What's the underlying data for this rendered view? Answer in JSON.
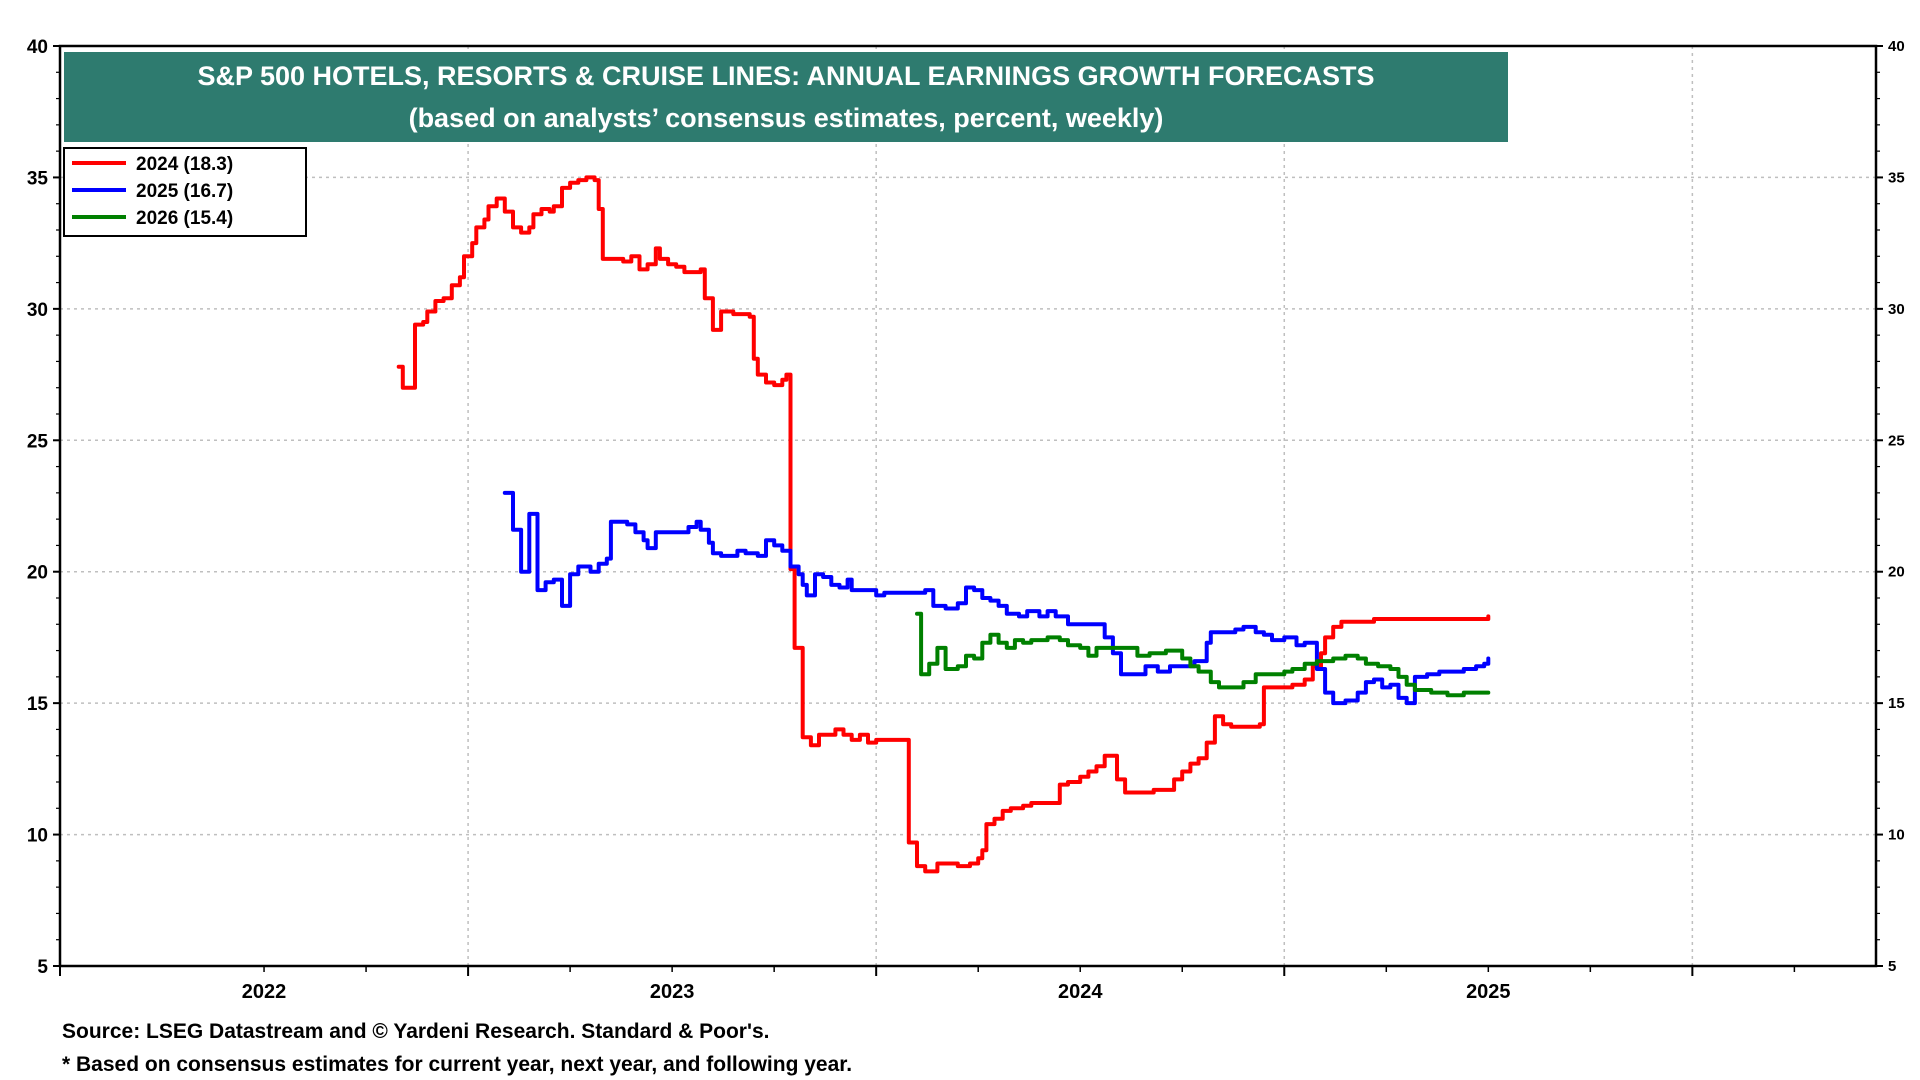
{
  "chart_data": {
    "type": "line",
    "title": "S&P 500 HOTELS, RESORTS & CRUISE LINES: ANNUAL EARNINGS GROWTH FORECASTS",
    "subtitle": "(based on analysts’ consensus estimates, percent, weekly)",
    "ylim": [
      5,
      40
    ],
    "yticks": [
      5,
      10,
      15,
      20,
      25,
      30,
      35,
      40
    ],
    "xlim": [
      2021.5,
      2025.95
    ],
    "x_year_labels": [
      "2022",
      "2023",
      "2024",
      "2025"
    ],
    "grid": true,
    "legend_position": "top-left",
    "colors": {
      "title_bg": "#2e7b6f",
      "grid": "#bfbfbf"
    },
    "series": [
      {
        "name": "2024 (18.3)",
        "color": "#ff0000",
        "points": [
          [
            2022.33,
            27.8
          ],
          [
            2022.34,
            27.0
          ],
          [
            2022.36,
            27.0
          ],
          [
            2022.37,
            29.4
          ],
          [
            2022.39,
            29.5
          ],
          [
            2022.4,
            29.9
          ],
          [
            2022.42,
            30.3
          ],
          [
            2022.44,
            30.4
          ],
          [
            2022.46,
            30.9
          ],
          [
            2022.48,
            31.2
          ],
          [
            2022.49,
            32.0
          ],
          [
            2022.51,
            32.5
          ],
          [
            2022.52,
            33.1
          ],
          [
            2022.54,
            33.4
          ],
          [
            2022.55,
            33.9
          ],
          [
            2022.57,
            34.2
          ],
          [
            2022.59,
            33.7
          ],
          [
            2022.61,
            33.1
          ],
          [
            2022.63,
            32.9
          ],
          [
            2022.65,
            33.1
          ],
          [
            2022.66,
            33.6
          ],
          [
            2022.68,
            33.8
          ],
          [
            2022.7,
            33.7
          ],
          [
            2022.71,
            33.9
          ],
          [
            2022.73,
            34.6
          ],
          [
            2022.75,
            34.8
          ],
          [
            2022.77,
            34.9
          ],
          [
            2022.79,
            35.0
          ],
          [
            2022.81,
            34.9
          ],
          [
            2022.82,
            33.8
          ],
          [
            2022.83,
            31.9
          ],
          [
            2022.86,
            31.9
          ],
          [
            2022.88,
            31.8
          ],
          [
            2022.9,
            32.0
          ],
          [
            2022.92,
            31.5
          ],
          [
            2022.94,
            31.7
          ],
          [
            2022.96,
            32.3
          ],
          [
            2022.97,
            31.9
          ],
          [
            2022.99,
            31.7
          ],
          [
            2023.01,
            31.6
          ],
          [
            2023.03,
            31.4
          ],
          [
            2023.07,
            31.5
          ],
          [
            2023.08,
            30.4
          ],
          [
            2023.1,
            29.2
          ],
          [
            2023.12,
            29.9
          ],
          [
            2023.15,
            29.8
          ],
          [
            2023.18,
            29.8
          ],
          [
            2023.19,
            29.7
          ],
          [
            2023.2,
            28.1
          ],
          [
            2023.21,
            27.5
          ],
          [
            2023.23,
            27.2
          ],
          [
            2023.25,
            27.1
          ],
          [
            2023.27,
            27.3
          ],
          [
            2023.28,
            27.5
          ],
          [
            2023.29,
            20.1
          ],
          [
            2023.3,
            17.1
          ],
          [
            2023.31,
            17.1
          ],
          [
            2023.32,
            13.7
          ],
          [
            2023.34,
            13.4
          ],
          [
            2023.36,
            13.8
          ],
          [
            2023.38,
            13.8
          ],
          [
            2023.4,
            14.0
          ],
          [
            2023.42,
            13.8
          ],
          [
            2023.44,
            13.6
          ],
          [
            2023.46,
            13.8
          ],
          [
            2023.48,
            13.5
          ],
          [
            2023.5,
            13.6
          ],
          [
            2023.53,
            13.6
          ],
          [
            2023.57,
            13.6
          ],
          [
            2023.58,
            9.7
          ],
          [
            2023.6,
            8.8
          ],
          [
            2023.62,
            8.6
          ],
          [
            2023.65,
            8.9
          ],
          [
            2023.68,
            8.9
          ],
          [
            2023.7,
            8.8
          ],
          [
            2023.73,
            8.9
          ],
          [
            2023.75,
            9.1
          ],
          [
            2023.76,
            9.4
          ],
          [
            2023.77,
            10.4
          ],
          [
            2023.79,
            10.6
          ],
          [
            2023.81,
            10.9
          ],
          [
            2023.83,
            11.0
          ],
          [
            2023.86,
            11.1
          ],
          [
            2023.88,
            11.2
          ],
          [
            2023.93,
            11.2
          ],
          [
            2023.95,
            11.9
          ],
          [
            2023.97,
            12.0
          ],
          [
            2024.0,
            12.2
          ],
          [
            2024.02,
            12.4
          ],
          [
            2024.04,
            12.6
          ],
          [
            2024.06,
            13.0
          ],
          [
            2024.08,
            13.0
          ],
          [
            2024.09,
            12.1
          ],
          [
            2024.11,
            11.6
          ],
          [
            2024.15,
            11.6
          ],
          [
            2024.18,
            11.7
          ],
          [
            2024.21,
            11.7
          ],
          [
            2024.23,
            12.1
          ],
          [
            2024.25,
            12.4
          ],
          [
            2024.27,
            12.7
          ],
          [
            2024.29,
            12.9
          ],
          [
            2024.31,
            13.5
          ],
          [
            2024.33,
            14.5
          ],
          [
            2024.35,
            14.2
          ],
          [
            2024.37,
            14.1
          ],
          [
            2024.4,
            14.1
          ],
          [
            2024.43,
            14.1
          ],
          [
            2024.44,
            14.2
          ],
          [
            2024.45,
            15.6
          ],
          [
            2024.48,
            15.6
          ],
          [
            2024.52,
            15.7
          ],
          [
            2024.55,
            15.9
          ],
          [
            2024.57,
            16.4
          ],
          [
            2024.59,
            16.9
          ],
          [
            2024.6,
            17.5
          ],
          [
            2024.62,
            17.9
          ],
          [
            2024.64,
            18.1
          ],
          [
            2024.68,
            18.1
          ],
          [
            2024.72,
            18.2
          ],
          [
            2024.8,
            18.2
          ],
          [
            2024.9,
            18.2
          ],
          [
            2024.98,
            18.2
          ],
          [
            2025.0,
            18.3
          ]
        ]
      },
      {
        "name": "2025 (16.7)",
        "color": "#0000ff",
        "points": [
          [
            2022.59,
            23.0
          ],
          [
            2022.61,
            21.6
          ],
          [
            2022.62,
            21.6
          ],
          [
            2022.63,
            20.0
          ],
          [
            2022.64,
            20.0
          ],
          [
            2022.65,
            22.2
          ],
          [
            2022.66,
            22.2
          ],
          [
            2022.67,
            19.3
          ],
          [
            2022.69,
            19.6
          ],
          [
            2022.71,
            19.7
          ],
          [
            2022.72,
            19.7
          ],
          [
            2022.73,
            18.7
          ],
          [
            2022.74,
            18.7
          ],
          [
            2022.75,
            19.9
          ],
          [
            2022.77,
            20.2
          ],
          [
            2022.79,
            20.2
          ],
          [
            2022.8,
            20.0
          ],
          [
            2022.82,
            20.3
          ],
          [
            2022.84,
            20.5
          ],
          [
            2022.85,
            21.9
          ],
          [
            2022.87,
            21.9
          ],
          [
            2022.89,
            21.8
          ],
          [
            2022.91,
            21.5
          ],
          [
            2022.93,
            21.2
          ],
          [
            2022.94,
            20.9
          ],
          [
            2022.96,
            21.5
          ],
          [
            2023.0,
            21.5
          ],
          [
            2023.02,
            21.5
          ],
          [
            2023.04,
            21.7
          ],
          [
            2023.06,
            21.9
          ],
          [
            2023.07,
            21.6
          ],
          [
            2023.09,
            21.1
          ],
          [
            2023.1,
            20.7
          ],
          [
            2023.12,
            20.6
          ],
          [
            2023.14,
            20.6
          ],
          [
            2023.16,
            20.8
          ],
          [
            2023.18,
            20.7
          ],
          [
            2023.21,
            20.6
          ],
          [
            2023.23,
            21.2
          ],
          [
            2023.25,
            21.0
          ],
          [
            2023.27,
            20.8
          ],
          [
            2023.29,
            20.2
          ],
          [
            2023.31,
            19.9
          ],
          [
            2023.32,
            19.5
          ],
          [
            2023.33,
            19.1
          ],
          [
            2023.35,
            19.9
          ],
          [
            2023.37,
            19.8
          ],
          [
            2023.39,
            19.5
          ],
          [
            2023.41,
            19.4
          ],
          [
            2023.43,
            19.7
          ],
          [
            2023.44,
            19.3
          ],
          [
            2023.46,
            19.3
          ],
          [
            2023.48,
            19.3
          ],
          [
            2023.5,
            19.1
          ],
          [
            2023.52,
            19.2
          ],
          [
            2023.55,
            19.2
          ],
          [
            2023.6,
            19.2
          ],
          [
            2023.62,
            19.3
          ],
          [
            2023.64,
            18.7
          ],
          [
            2023.67,
            18.6
          ],
          [
            2023.7,
            18.8
          ],
          [
            2023.72,
            19.4
          ],
          [
            2023.74,
            19.3
          ],
          [
            2023.76,
            19.0
          ],
          [
            2023.78,
            18.9
          ],
          [
            2023.8,
            18.7
          ],
          [
            2023.82,
            18.4
          ],
          [
            2023.85,
            18.3
          ],
          [
            2023.87,
            18.5
          ],
          [
            2023.9,
            18.3
          ],
          [
            2023.92,
            18.5
          ],
          [
            2023.94,
            18.3
          ],
          [
            2023.97,
            18.0
          ],
          [
            2024.0,
            18.0
          ],
          [
            2024.04,
            18.0
          ],
          [
            2024.06,
            17.5
          ],
          [
            2024.08,
            16.9
          ],
          [
            2024.1,
            16.1
          ],
          [
            2024.14,
            16.1
          ],
          [
            2024.16,
            16.4
          ],
          [
            2024.19,
            16.2
          ],
          [
            2024.22,
            16.4
          ],
          [
            2024.25,
            16.4
          ],
          [
            2024.28,
            16.6
          ],
          [
            2024.3,
            16.6
          ],
          [
            2024.31,
            17.3
          ],
          [
            2024.32,
            17.7
          ],
          [
            2024.35,
            17.7
          ],
          [
            2024.38,
            17.8
          ],
          [
            2024.4,
            17.9
          ],
          [
            2024.43,
            17.7
          ],
          [
            2024.45,
            17.6
          ],
          [
            2024.47,
            17.4
          ],
          [
            2024.5,
            17.5
          ],
          [
            2024.53,
            17.2
          ],
          [
            2024.55,
            17.3
          ],
          [
            2024.58,
            16.3
          ],
          [
            2024.6,
            15.4
          ],
          [
            2024.62,
            15.0
          ],
          [
            2024.65,
            15.1
          ],
          [
            2024.68,
            15.4
          ],
          [
            2024.7,
            15.8
          ],
          [
            2024.72,
            15.9
          ],
          [
            2024.74,
            15.6
          ],
          [
            2024.76,
            15.7
          ],
          [
            2024.78,
            15.2
          ],
          [
            2024.8,
            15.0
          ],
          [
            2024.82,
            16.0
          ],
          [
            2024.85,
            16.1
          ],
          [
            2024.88,
            16.2
          ],
          [
            2024.91,
            16.2
          ],
          [
            2024.94,
            16.3
          ],
          [
            2024.97,
            16.4
          ],
          [
            2024.99,
            16.5
          ],
          [
            2025.0,
            16.7
          ]
        ]
      },
      {
        "name": "2026 (15.4)",
        "color": "#008000",
        "points": [
          [
            2023.6,
            18.4
          ],
          [
            2023.61,
            16.1
          ],
          [
            2023.63,
            16.5
          ],
          [
            2023.65,
            17.1
          ],
          [
            2023.66,
            17.1
          ],
          [
            2023.67,
            16.3
          ],
          [
            2023.7,
            16.4
          ],
          [
            2023.72,
            16.8
          ],
          [
            2023.74,
            16.7
          ],
          [
            2023.76,
            17.3
          ],
          [
            2023.78,
            17.6
          ],
          [
            2023.8,
            17.3
          ],
          [
            2023.82,
            17.1
          ],
          [
            2023.84,
            17.4
          ],
          [
            2023.86,
            17.3
          ],
          [
            2023.88,
            17.4
          ],
          [
            2023.92,
            17.5
          ],
          [
            2023.95,
            17.4
          ],
          [
            2023.97,
            17.2
          ],
          [
            2024.0,
            17.1
          ],
          [
            2024.02,
            16.8
          ],
          [
            2024.04,
            17.1
          ],
          [
            2024.08,
            17.1
          ],
          [
            2024.12,
            17.1
          ],
          [
            2024.14,
            16.8
          ],
          [
            2024.17,
            16.9
          ],
          [
            2024.21,
            17.0
          ],
          [
            2024.23,
            17.0
          ],
          [
            2024.25,
            16.7
          ],
          [
            2024.27,
            16.4
          ],
          [
            2024.29,
            16.2
          ],
          [
            2024.32,
            15.8
          ],
          [
            2024.34,
            15.6
          ],
          [
            2024.37,
            15.6
          ],
          [
            2024.4,
            15.8
          ],
          [
            2024.43,
            16.1
          ],
          [
            2024.45,
            16.1
          ],
          [
            2024.5,
            16.2
          ],
          [
            2024.52,
            16.3
          ],
          [
            2024.55,
            16.5
          ],
          [
            2024.58,
            16.6
          ],
          [
            2024.6,
            16.6
          ],
          [
            2024.62,
            16.7
          ],
          [
            2024.65,
            16.8
          ],
          [
            2024.68,
            16.7
          ],
          [
            2024.7,
            16.5
          ],
          [
            2024.73,
            16.4
          ],
          [
            2024.76,
            16.3
          ],
          [
            2024.78,
            16.0
          ],
          [
            2024.8,
            15.7
          ],
          [
            2024.82,
            15.5
          ],
          [
            2024.86,
            15.4
          ],
          [
            2024.9,
            15.3
          ],
          [
            2024.94,
            15.4
          ],
          [
            2024.98,
            15.4
          ],
          [
            2025.0,
            15.4
          ]
        ]
      }
    ]
  },
  "footer": {
    "source": "Source: LSEG Datastream and © Yardeni Research. Standard & Poor's.",
    "note": "* Based on consensus estimates for current year, next year, and following year."
  }
}
